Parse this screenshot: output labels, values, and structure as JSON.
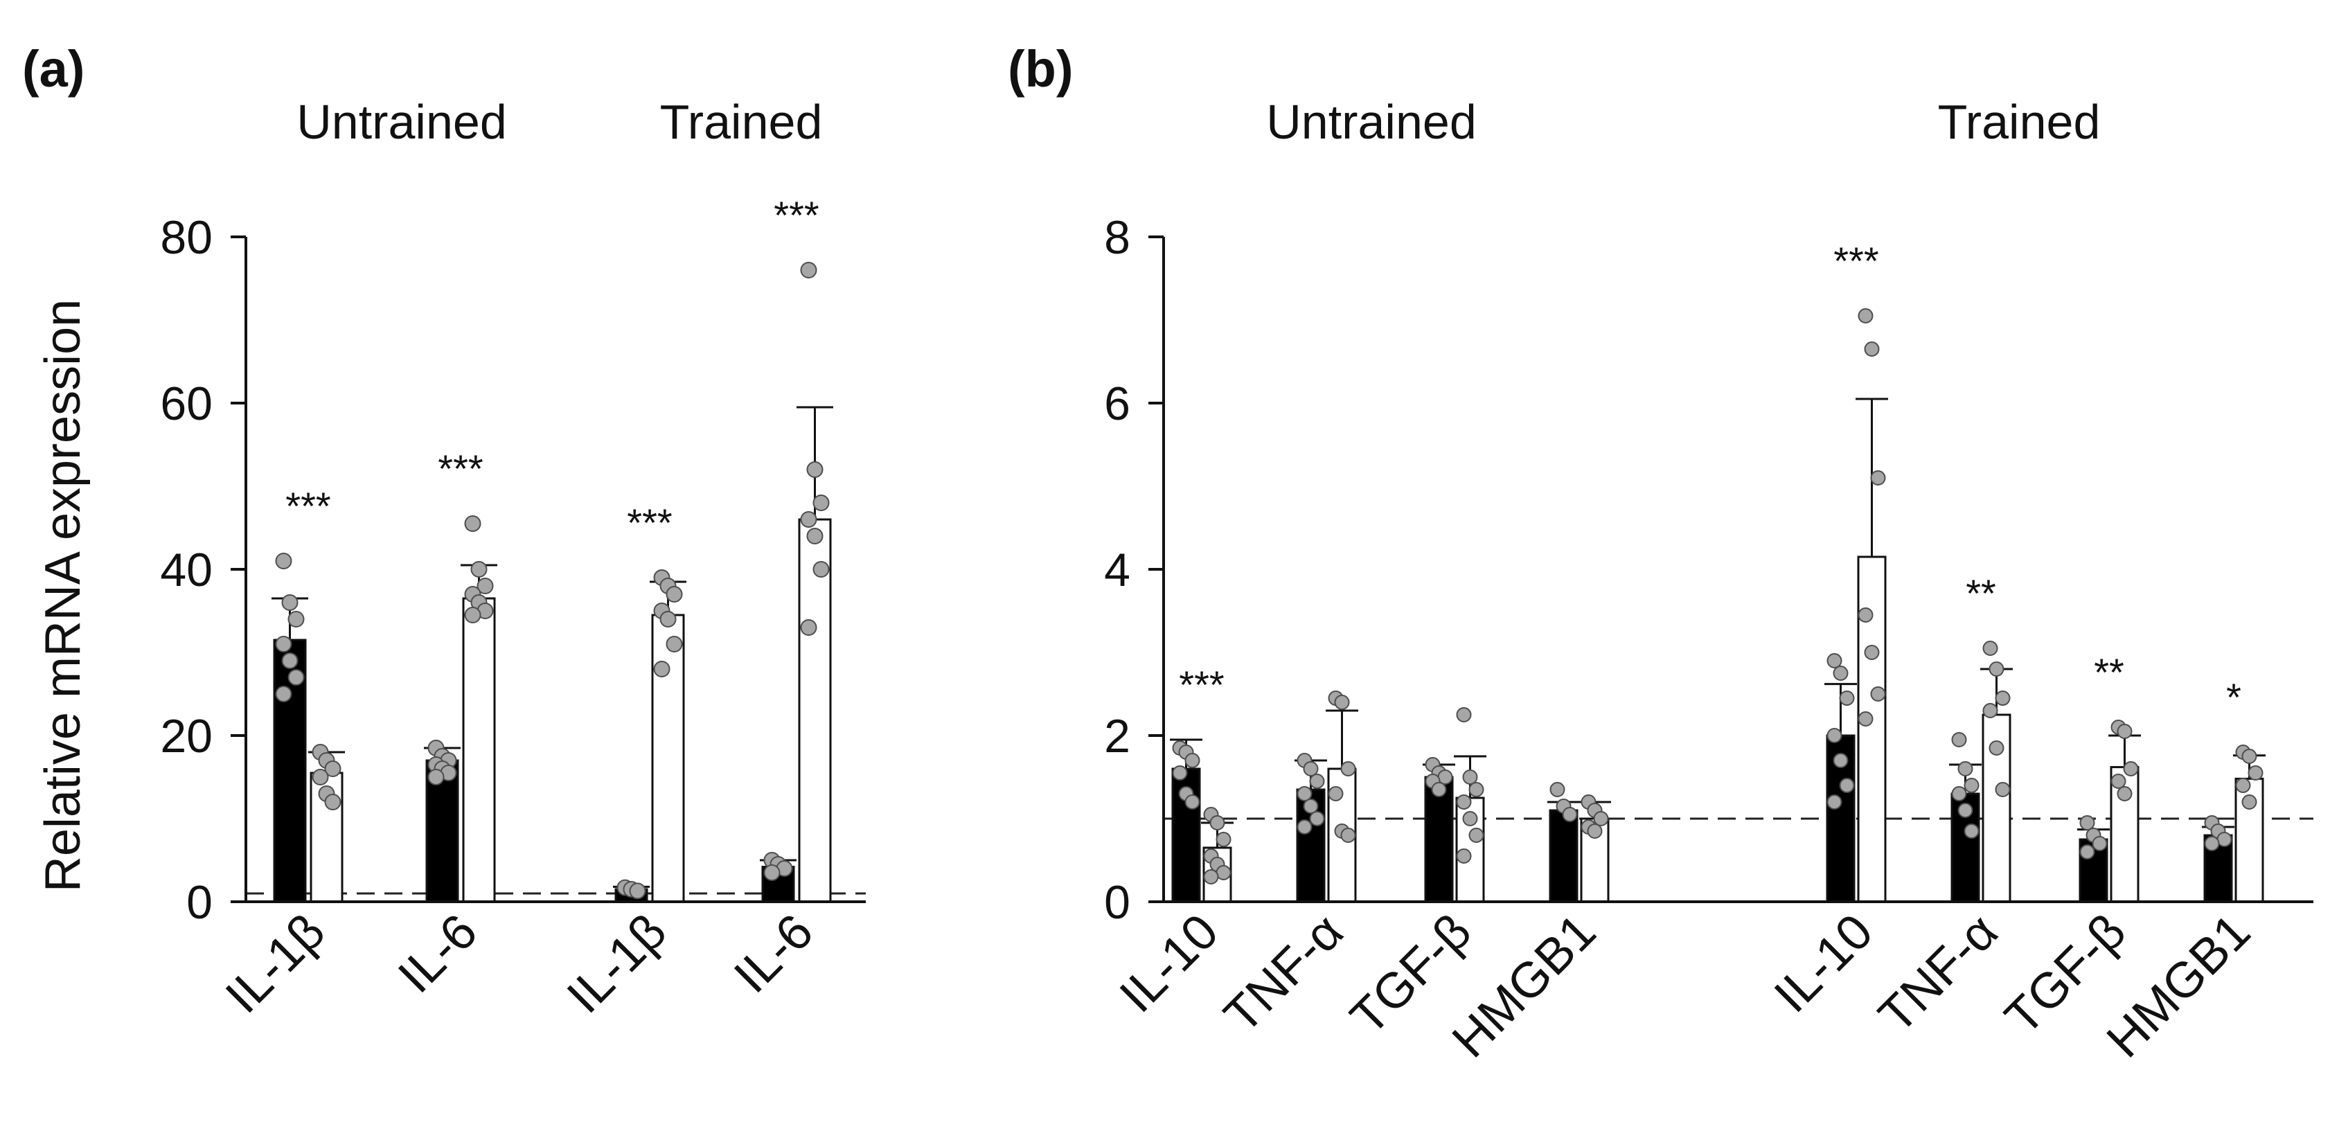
{
  "figure": {
    "ylabel": "Relative mRNA expression",
    "colors": {
      "ink": "#111111",
      "black_bar": "#000000",
      "white_bar": "#ffffff",
      "dot_fill": "#a6a6a6",
      "dot_edge": "#4d4d4d",
      "dash": "#222222"
    }
  },
  "chart_data": [
    {
      "panel": "a",
      "panel_label": "(a)",
      "type": "bar",
      "ylabel": "Relative mRNA expression",
      "ylim": [
        0,
        80
      ],
      "yticks": [
        0,
        20,
        40,
        60,
        80
      ],
      "reference_line": 1,
      "groups": [
        {
          "title": "Untrained",
          "categories": [
            {
              "label": "IL-1β",
              "black": {
                "mean": 31.5,
                "err": 5.0
              },
              "white": {
                "mean": 15.5,
                "err": 2.5
              },
              "sig": "***",
              "dots_black": [
                41,
                36,
                34,
                31,
                29,
                27,
                25
              ],
              "dots_white": [
                18,
                17,
                16,
                15,
                13,
                12
              ]
            },
            {
              "label": "IL-6",
              "black": {
                "mean": 17.0,
                "err": 1.5
              },
              "white": {
                "mean": 36.5,
                "err": 4.0
              },
              "sig": "***",
              "dots_black": [
                18.5,
                17.5,
                17,
                16.5,
                16,
                15.5,
                15
              ],
              "dots_white": [
                45.5,
                40,
                38,
                37,
                36,
                35,
                34.5
              ]
            }
          ]
        },
        {
          "title": "Trained",
          "categories": [
            {
              "label": "IL-1β",
              "black": {
                "mean": 1.5,
                "err": 0.3
              },
              "white": {
                "mean": 34.5,
                "err": 4.0
              },
              "sig": "***",
              "dots_black": [
                1.7,
                1.5,
                1.3
              ],
              "dots_white": [
                39,
                38,
                37,
                35,
                34,
                31,
                28
              ]
            },
            {
              "label": "IL-6",
              "black": {
                "mean": 4.2,
                "err": 0.8
              },
              "white": {
                "mean": 46.0,
                "err": 13.5
              },
              "sig": "***",
              "dots_black": [
                5,
                4.5,
                4,
                3.5
              ],
              "dots_white": [
                76,
                52,
                48,
                46,
                44,
                40,
                33
              ]
            }
          ]
        }
      ]
    },
    {
      "panel": "b",
      "panel_label": "(b)",
      "type": "bar",
      "ylabel": "",
      "ylim": [
        0,
        8
      ],
      "yticks": [
        0,
        2,
        4,
        6,
        8
      ],
      "reference_line": 1,
      "groups": [
        {
          "title": "Untrained",
          "categories": [
            {
              "label": "IL-10",
              "black": {
                "mean": 1.6,
                "err": 0.35
              },
              "white": {
                "mean": 0.65,
                "err": 0.3
              },
              "sig": "***",
              "dots_black": [
                1.85,
                1.8,
                1.7,
                1.55,
                1.3,
                1.2
              ],
              "dots_white": [
                1.05,
                0.95,
                0.75,
                0.55,
                0.45,
                0.35,
                0.3
              ]
            },
            {
              "label": "TNF-α",
              "black": {
                "mean": 1.35,
                "err": 0.35
              },
              "white": {
                "mean": 1.6,
                "err": 0.7
              },
              "sig": "",
              "dots_black": [
                1.7,
                1.6,
                1.45,
                1.3,
                1.15,
                1.0,
                0.9
              ],
              "dots_white": [
                2.45,
                2.4,
                1.6,
                1.3,
                0.85,
                0.8
              ]
            },
            {
              "label": "TGF-β",
              "black": {
                "mean": 1.5,
                "err": 0.15
              },
              "white": {
                "mean": 1.25,
                "err": 0.5
              },
              "sig": "",
              "dots_black": [
                1.65,
                1.55,
                1.5,
                1.45,
                1.35
              ],
              "dots_white": [
                2.25,
                1.5,
                1.35,
                1.2,
                1.0,
                0.8,
                0.55
              ]
            },
            {
              "label": "HMGB1",
              "black": {
                "mean": 1.1,
                "err": 0.1
              },
              "white": {
                "mean": 1.0,
                "err": 0.2
              },
              "sig": "",
              "dots_black": [
                1.35,
                1.15,
                1.05
              ],
              "dots_white": [
                1.2,
                1.1,
                1.0,
                0.9,
                0.85
              ]
            }
          ]
        },
        {
          "title": "Trained",
          "categories": [
            {
              "label": "IL-10",
              "black": {
                "mean": 2.0,
                "err": 0.62
              },
              "white": {
                "mean": 4.15,
                "err": 1.9
              },
              "sig": "***",
              "dots_black": [
                2.9,
                2.75,
                2.45,
                2.0,
                1.7,
                1.4,
                1.2
              ],
              "dots_white": [
                7.05,
                6.65,
                5.1,
                3.45,
                3.0,
                2.5,
                2.2
              ]
            },
            {
              "label": "TNF-α",
              "black": {
                "mean": 1.3,
                "err": 0.35
              },
              "white": {
                "mean": 2.25,
                "err": 0.55
              },
              "sig": "**",
              "dots_black": [
                1.95,
                1.6,
                1.4,
                1.3,
                1.1,
                0.85
              ],
              "dots_white": [
                3.05,
                2.8,
                2.45,
                2.3,
                1.85,
                1.35
              ]
            },
            {
              "label": "TGF-β",
              "black": {
                "mean": 0.75,
                "err": 0.12
              },
              "white": {
                "mean": 1.62,
                "err": 0.38
              },
              "sig": "**",
              "dots_black": [
                0.95,
                0.8,
                0.7,
                0.6
              ],
              "dots_white": [
                2.1,
                2.05,
                1.6,
                1.45,
                1.3
              ]
            },
            {
              "label": "HMGB1",
              "black": {
                "mean": 0.8,
                "err": 0.1
              },
              "white": {
                "mean": 1.48,
                "err": 0.28
              },
              "sig": "*",
              "dots_black": [
                0.95,
                0.85,
                0.75,
                0.7
              ],
              "dots_white": [
                1.8,
                1.75,
                1.55,
                1.4,
                1.2
              ]
            }
          ]
        }
      ]
    }
  ]
}
